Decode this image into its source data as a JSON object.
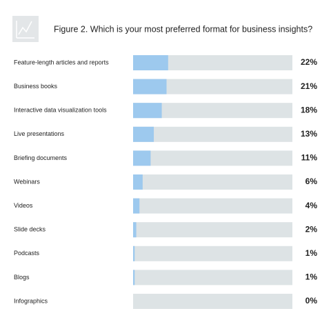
{
  "chart_data": {
    "type": "bar",
    "orientation": "horizontal",
    "title": "Figure 2. Which is your most preferred format for business insights?",
    "categories": [
      "Feature-length articles and reports",
      "Business books",
      "Interactive data visualization tools",
      "Live presentations",
      "Briefing documents",
      "Webinars",
      "Videos",
      "Slide decks",
      "Podcasts",
      "Blogs",
      "Infographics"
    ],
    "values": [
      22,
      21,
      18,
      13,
      11,
      6,
      4,
      2,
      1,
      1,
      0
    ],
    "value_labels": [
      "22%",
      "21%",
      "18%",
      "13%",
      "11%",
      "6%",
      "4%",
      "2%",
      "1%",
      "1%",
      "0%"
    ],
    "xlim": [
      0,
      100
    ],
    "color": "#9dc9ee",
    "track_color": "#dde3e5"
  }
}
